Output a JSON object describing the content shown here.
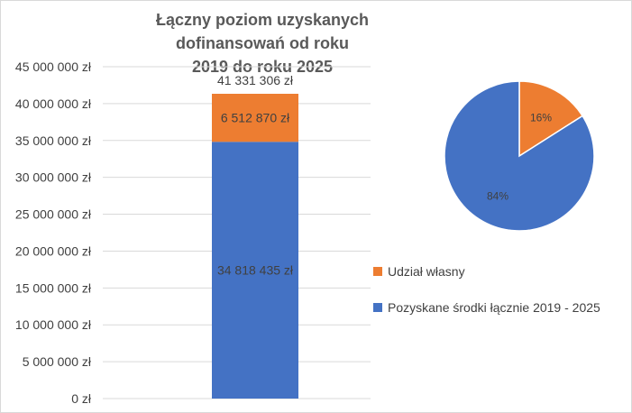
{
  "chart_data": [
    {
      "type": "bar",
      "stacked": true,
      "title_lines": [
        "Łączny poziom uzyskanych dofinansowań od roku",
        "2019 do roku 2025"
      ],
      "categories": [
        ""
      ],
      "series": [
        {
          "name": "Pozyskane środki łącznie 2019 - 2025",
          "values": [
            34818435
          ],
          "label": "34 818 435 zł",
          "color": "#4472C4"
        },
        {
          "name": "Udział własny",
          "values": [
            6512870
          ],
          "label": "6 512 870 zł",
          "color": "#ED7D31"
        }
      ],
      "total": {
        "value": 41331306,
        "label": "41 331 306 zł"
      },
      "ylim": [
        0,
        45000000
      ],
      "ytick_labels": [
        "0 zł",
        "5 000 000 zł",
        "10 000 000 zł",
        "15 000 000 zł",
        "20 000 000 zł",
        "25 000 000 zł",
        "30 000 000 zł",
        "35 000 000 zł",
        "40 000 000 zł",
        "45 000 000 zł"
      ],
      "grid": true
    },
    {
      "type": "pie",
      "slices": [
        {
          "name": "Udział własny",
          "value": 16,
          "label": "16%",
          "color": "#ED7D31"
        },
        {
          "name": "Pozyskane środki łącznie 2019 - 2025",
          "value": 84,
          "label": "84%",
          "color": "#4472C4"
        }
      ]
    }
  ],
  "legend": [
    {
      "label": "Udział własny",
      "color": "#ED7D31"
    },
    {
      "label": "Pozyskane środki łącznie 2019 - 2025",
      "color": "#4472C4"
    }
  ]
}
